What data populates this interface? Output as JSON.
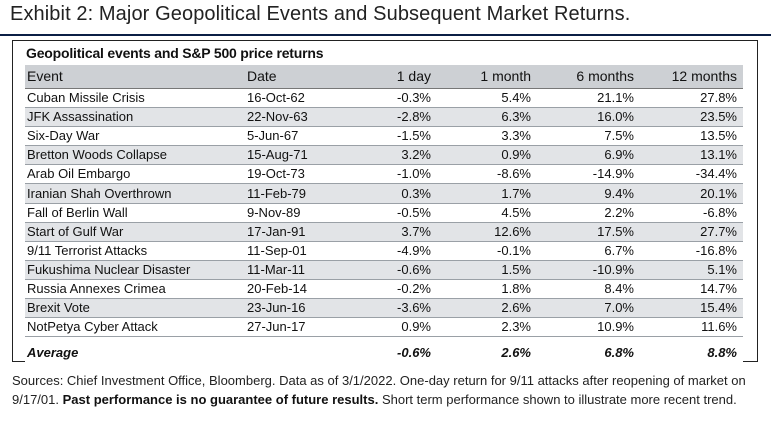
{
  "exhibit_title": "Exhibit 2: Major Geopolitical Events and Subsequent Market Returns.",
  "sources_text": "Sources: Chief Investment Office, Bloomberg. Data as of 3/1/2022. One-day return for 9/11 attacks after reopening of market on 9/17/01.",
  "disclaimer_bold": "Past performance is no guarantee of future results.",
  "sources_tail": "Short term performance shown to illustrate more recent trend.",
  "chart_data": {
    "type": "table",
    "title": "Geopolitical events and S&P 500 price returns",
    "columns": [
      "Event",
      "Date",
      "1 day",
      "1 month",
      "6 months",
      "12 months"
    ],
    "rows": [
      [
        "Cuban Missile Crisis",
        "16-Oct-62",
        "-0.3%",
        "5.4%",
        "21.1%",
        "27.8%"
      ],
      [
        "JFK Assassination",
        "22-Nov-63",
        "-2.8%",
        "6.3%",
        "16.0%",
        "23.5%"
      ],
      [
        "Six-Day War",
        "5-Jun-67",
        "-1.5%",
        "3.3%",
        "7.5%",
        "13.5%"
      ],
      [
        "Bretton Woods Collapse",
        "15-Aug-71",
        "3.2%",
        "0.9%",
        "6.9%",
        "13.1%"
      ],
      [
        "Arab Oil Embargo",
        "19-Oct-73",
        "-1.0%",
        "-8.6%",
        "-14.9%",
        "-34.4%"
      ],
      [
        "Iranian Shah Overthrown",
        "11-Feb-79",
        "0.3%",
        "1.7%",
        "9.4%",
        "20.1%"
      ],
      [
        "Fall of Berlin Wall",
        "9-Nov-89",
        "-0.5%",
        "4.5%",
        "2.2%",
        "-6.8%"
      ],
      [
        "Start of Gulf War",
        "17-Jan-91",
        "3.7%",
        "12.6%",
        "17.5%",
        "27.7%"
      ],
      [
        "9/11 Terrorist Attacks",
        "11-Sep-01",
        "-4.9%",
        "-0.1%",
        "6.7%",
        "-16.8%"
      ],
      [
        "Fukushima Nuclear Disaster",
        "11-Mar-11",
        "-0.6%",
        "1.5%",
        "-10.9%",
        "5.1%"
      ],
      [
        "Russia Annexes Crimea",
        "20-Feb-14",
        "-0.2%",
        "1.8%",
        "8.4%",
        "14.7%"
      ],
      [
        "Brexit Vote",
        "23-Jun-16",
        "-3.6%",
        "2.6%",
        "7.0%",
        "15.4%"
      ],
      [
        "NotPetya Cyber Attack",
        "27-Jun-17",
        "0.9%",
        "2.3%",
        "10.9%",
        "11.6%"
      ]
    ],
    "average_row": [
      "Average",
      "",
      "-0.6%",
      "2.6%",
      "6.8%",
      "8.8%"
    ]
  }
}
